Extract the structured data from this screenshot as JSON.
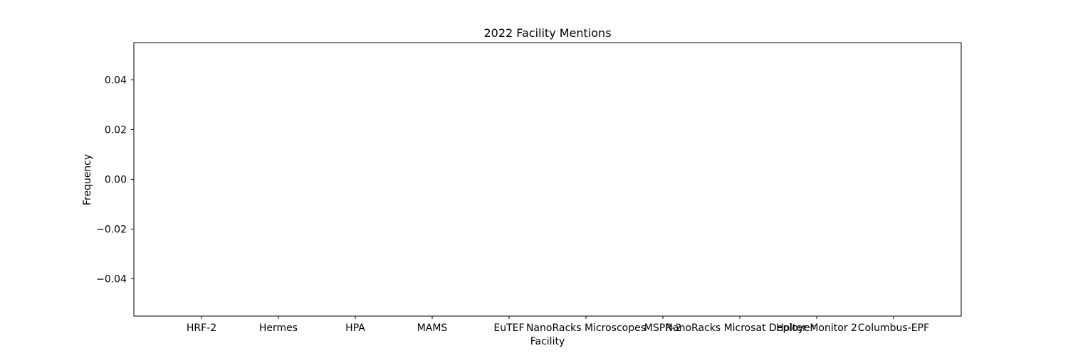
{
  "chart_data": {
    "type": "bar",
    "title": "2022 Facility Mentions",
    "xlabel": "Facility",
    "ylabel": "Frequency",
    "categories": [
      "HRF-2",
      "Hermes",
      "HPA",
      "MAMS",
      "EuTEF",
      "NanoRacks Microscopes",
      "MSPR-2",
      "NanoRacks Microsat Deployer",
      "Holter Monitor 2",
      "Columbus-EPF"
    ],
    "values": [
      0,
      0,
      0,
      0,
      0,
      0,
      0,
      0,
      0,
      0
    ],
    "ylim": [
      -0.055,
      0.055
    ],
    "yticks": [
      0.04,
      0.02,
      0.0,
      -0.02,
      -0.04
    ],
    "ytick_labels": [
      "0.04",
      "0.02",
      "0.00",
      "−0.02",
      "−0.04"
    ],
    "grid": false,
    "colors": {
      "axes": "#000000",
      "bar": "#1f77b4",
      "background": "#ffffff"
    }
  }
}
